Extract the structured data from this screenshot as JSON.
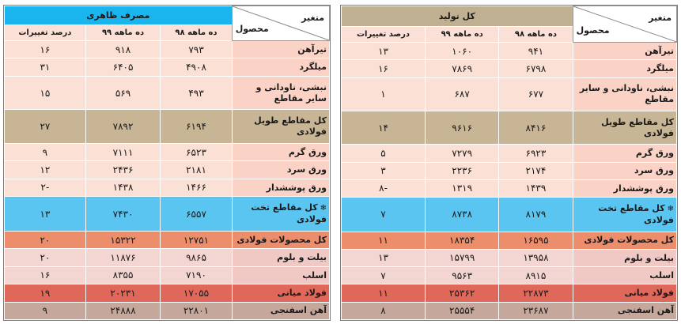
{
  "header": {
    "product": "محصول",
    "variable": "متغیر",
    "col_98": "ده ماهه ۹۸",
    "col_99": "ده ماهه ۹۹",
    "col_change": "درصد تغییرات"
  },
  "left_table": {
    "title": "مصرف ظاهری",
    "title_color": "#1ab5ee",
    "rows": [
      {
        "name": "تیرآهن",
        "v98": "۷۹۳",
        "v99": "۹۱۸",
        "change": "۱۶",
        "style": "light"
      },
      {
        "name": "میلگرد",
        "v98": "۴۹۰۸",
        "v99": "۶۴۰۵",
        "change": "۳۱",
        "style": "light"
      },
      {
        "name": "نبشی، ناودانی و سایر مقاطع",
        "v98": "۴۹۳",
        "v99": "۵۶۹",
        "change": "۱۵",
        "style": "light"
      },
      {
        "name": "کل مقاطع طویل فولادی",
        "v98": "۶۱۹۴",
        "v99": "۷۸۹۲",
        "change": "۲۷",
        "style": "long"
      },
      {
        "name": "ورق گرم",
        "v98": "۶۵۲۳",
        "v99": "۷۱۱۱",
        "change": "۹",
        "style": "light"
      },
      {
        "name": "ورق سرد",
        "v98": "۲۱۸۱",
        "v99": "۲۴۳۶",
        "change": "۱۲",
        "style": "light"
      },
      {
        "name": "ورق پوششدار",
        "v98": "۱۴۶۶",
        "v99": "۱۴۳۸",
        "change": "-۲",
        "style": "light"
      },
      {
        "name": "کل مقاطع تخت فولادی",
        "v98": "۶۵۵۷",
        "v99": "۷۴۳۰",
        "change": "۱۳",
        "style": "flat",
        "star": "❄"
      },
      {
        "name": "کل محصولات فولادی",
        "v98": "۱۲۷۵۱",
        "v99": "۱۵۳۲۲",
        "change": "۲۰",
        "style": "all"
      },
      {
        "name": "بیلت و بلوم",
        "v98": "۹۸۶۵",
        "v99": "۱۱۸۷۶",
        "change": "۲۰",
        "style": "billet"
      },
      {
        "name": "اسلب",
        "v98": "۷۱۹۰",
        "v99": "۸۳۵۵",
        "change": "۱۶",
        "style": "billet"
      },
      {
        "name": "فولاد میانی",
        "v98": "۱۷۰۵۵",
        "v99": "۲۰۲۳۱",
        "change": "۱۹",
        "style": "mid"
      },
      {
        "name": "آهن اسفنجی",
        "v98": "۲۲۸۰۱",
        "v99": "۲۴۸۸۸",
        "change": "۹",
        "style": "sponge"
      }
    ]
  },
  "right_table": {
    "title": "کل تولید",
    "title_color": "#c0b092",
    "rows": [
      {
        "name": "تیرآهن",
        "v98": "۹۴۱",
        "v99": "۱۰۶۰",
        "change": "۱۳",
        "style": "light"
      },
      {
        "name": "میلگرد",
        "v98": "۶۷۹۸",
        "v99": "۷۸۶۹",
        "change": "۱۶",
        "style": "light"
      },
      {
        "name": "نبشی، ناودانی و سایر مقاطع",
        "v98": "۶۷۷",
        "v99": "۶۸۷",
        "change": "۱",
        "style": "light"
      },
      {
        "name": "کل مقاطع طویل فولادی",
        "v98": "۸۴۱۶",
        "v99": "۹۶۱۶",
        "change": "۱۴",
        "style": "long"
      },
      {
        "name": "ورق گرم",
        "v98": "۶۹۲۳",
        "v99": "۷۲۷۹",
        "change": "۵",
        "style": "light"
      },
      {
        "name": "ورق سرد",
        "v98": "۲۱۷۴",
        "v99": "۲۲۳۶",
        "change": "۳",
        "style": "light"
      },
      {
        "name": "ورق پوششدار",
        "v98": "۱۴۳۹",
        "v99": "۱۳۱۹",
        "change": "-۸",
        "style": "light"
      },
      {
        "name": "کل مقاطع تخت فولادی",
        "v98": "۸۱۷۹",
        "v99": "۸۷۳۸",
        "change": "۷",
        "style": "flat",
        "star": "❄"
      },
      {
        "name": "کل محصولات فولادی",
        "v98": "۱۶۵۹۵",
        "v99": "۱۸۳۵۴",
        "change": "۱۱",
        "style": "all"
      },
      {
        "name": "بیلت و بلوم",
        "v98": "۱۳۹۵۸",
        "v99": "۱۵۷۹۹",
        "change": "۱۳",
        "style": "billet"
      },
      {
        "name": "اسلب",
        "v98": "۸۹۱۵",
        "v99": "۹۵۶۳",
        "change": "۷",
        "style": "billet"
      },
      {
        "name": "فولاد میانی",
        "v98": "۲۲۸۷۳",
        "v99": "۲۵۳۶۲",
        "change": "۱۱",
        "style": "mid"
      },
      {
        "name": "آهن اسفنجی",
        "v98": "۲۳۶۸۷",
        "v99": "۲۵۵۵۴",
        "change": "۸",
        "style": "sponge"
      }
    ]
  }
}
